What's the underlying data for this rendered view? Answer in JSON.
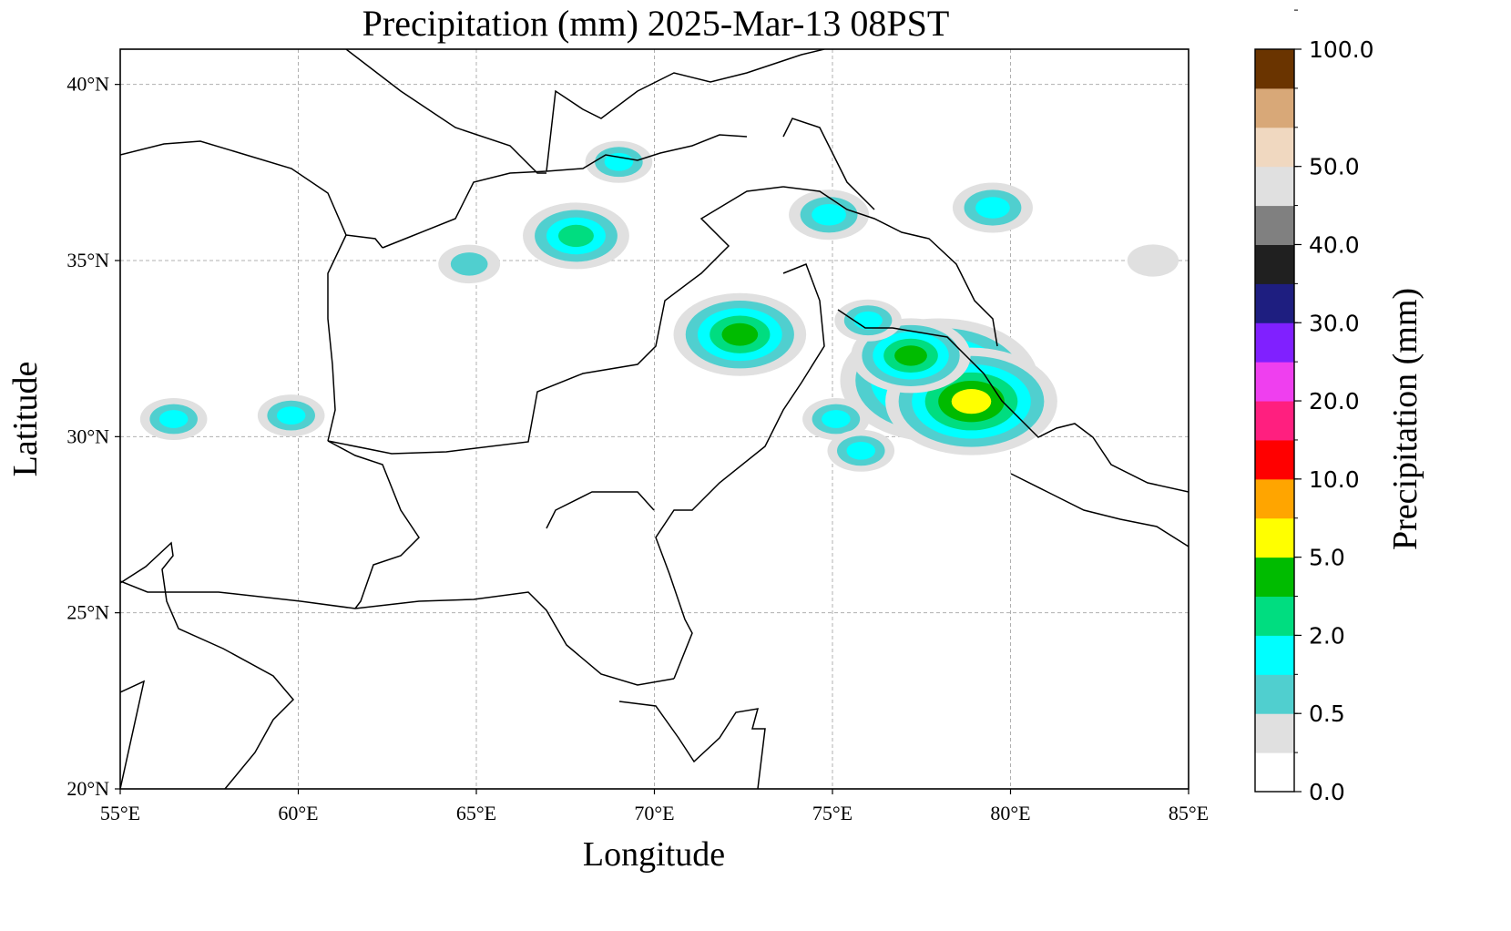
{
  "title": "Precipitation (mm)  2025-Mar-13 08PST",
  "map": {
    "xlabel": "Longitude",
    "ylabel": "Latitude",
    "lon_range": [
      55,
      85
    ],
    "lat_range": [
      20,
      41
    ],
    "lon_ticks": [
      {
        "value": 55,
        "label": "55°E"
      },
      {
        "value": 60,
        "label": "60°E"
      },
      {
        "value": 65,
        "label": "65°E"
      },
      {
        "value": 70,
        "label": "70°E"
      },
      {
        "value": 75,
        "label": "75°E"
      },
      {
        "value": 80,
        "label": "80°E"
      },
      {
        "value": 85,
        "label": "85°E"
      }
    ],
    "lat_ticks": [
      {
        "value": 20,
        "label": "20°N"
      },
      {
        "value": 25,
        "label": "25°N"
      },
      {
        "value": 30,
        "label": "30°N"
      },
      {
        "value": 35,
        "label": "35°N"
      },
      {
        "value": 40,
        "label": "40°N"
      }
    ],
    "grid": true
  },
  "colorbar": {
    "label": "Precipitation (mm)",
    "levels": [
      0,
      0.25,
      0.5,
      1,
      2,
      3,
      5,
      7.5,
      10,
      15,
      20,
      25,
      30,
      35,
      40,
      45,
      50,
      60,
      75,
      100,
      125
    ],
    "colors": [
      "#ffffff",
      "#e0e0e0",
      "#50cfcf",
      "#00ffff",
      "#00dd80",
      "#00bb00",
      "#ffff00",
      "#ffa500",
      "#ff0000",
      "#ff1f7f",
      "#ef3fef",
      "#8020ff",
      "#1e1e80",
      "#202020",
      "#808080",
      "#e0e0e0",
      "#f0d8c0",
      "#d8a878",
      "#6a3400"
    ],
    "tick_labels": [
      {
        "value": 0,
        "label": "0.0"
      },
      {
        "value": 0.5,
        "label": "0.5"
      },
      {
        "value": 2,
        "label": "2.0"
      },
      {
        "value": 5,
        "label": "5.0"
      },
      {
        "value": 10,
        "label": "10.0"
      },
      {
        "value": 20,
        "label": "20.0"
      },
      {
        "value": 30,
        "label": "30.0"
      },
      {
        "value": 40,
        "label": "40.0"
      },
      {
        "value": 50,
        "label": "50.0"
      },
      {
        "value": 100,
        "label": "100.0"
      }
    ]
  },
  "precip_cells": [
    {
      "lon": 72.4,
      "lat": 32.9,
      "max": 3.5
    },
    {
      "lon": 78.0,
      "lat": 31.6,
      "max": 6.0
    },
    {
      "lon": 78.9,
      "lat": 31.0,
      "max": 5.0
    },
    {
      "lon": 77.2,
      "lat": 32.3,
      "max": 3.0
    },
    {
      "lon": 67.8,
      "lat": 35.7,
      "max": 2.5
    },
    {
      "lon": 74.9,
      "lat": 36.3,
      "max": 1.5
    },
    {
      "lon": 79.5,
      "lat": 36.5,
      "max": 1.5
    },
    {
      "lon": 75.1,
      "lat": 30.5,
      "max": 1.0
    },
    {
      "lon": 75.8,
      "lat": 29.6,
      "max": 1.0
    },
    {
      "lon": 56.5,
      "lat": 30.5,
      "max": 1.0
    },
    {
      "lon": 59.8,
      "lat": 30.6,
      "max": 1.0
    },
    {
      "lon": 69.0,
      "lat": 37.8,
      "max": 1.0
    },
    {
      "lon": 64.8,
      "lat": 34.9,
      "max": 0.8
    },
    {
      "lon": 76.0,
      "lat": 33.3,
      "max": 1.0
    },
    {
      "lon": 84.0,
      "lat": 35.0,
      "max": 0.4
    }
  ]
}
